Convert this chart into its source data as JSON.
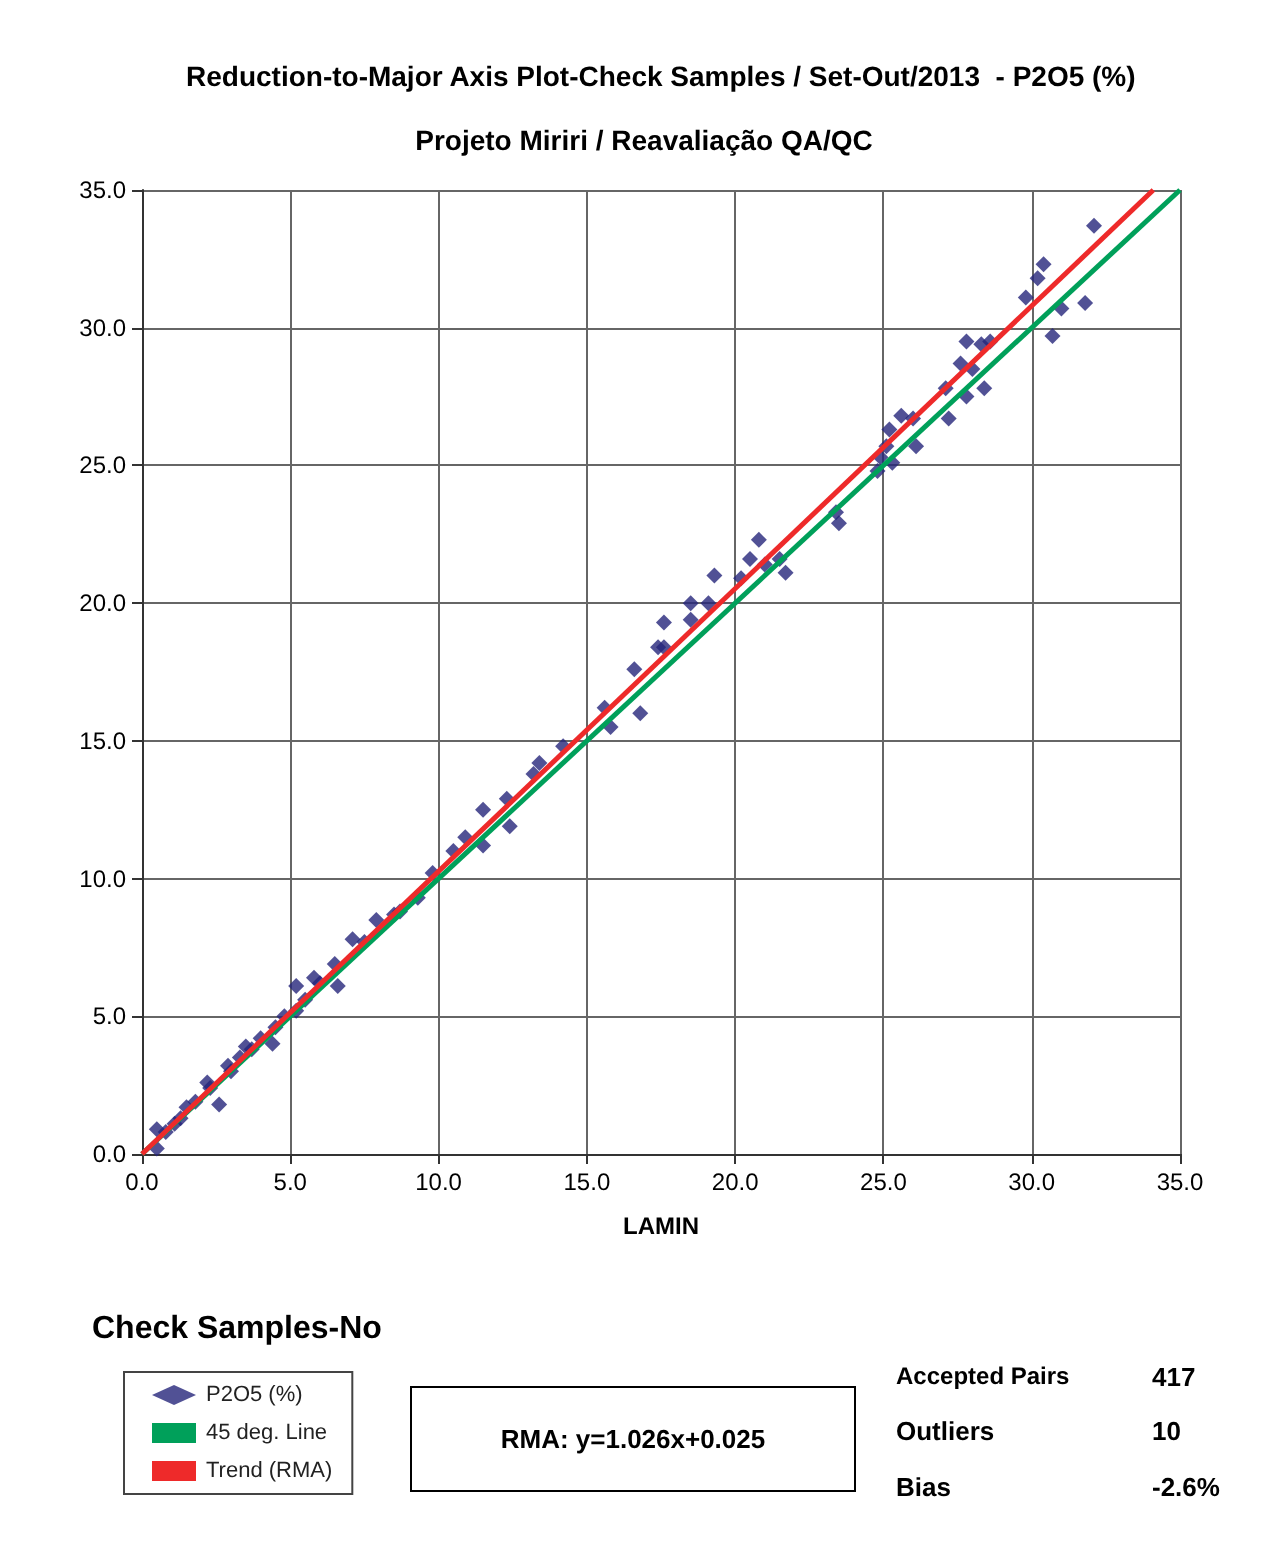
{
  "chart_data": {
    "type": "scatter",
    "title": "Reduction-to-Major Axis Plot-Check Samples / Set-Out/2013  - P2O5 (%)",
    "subtitle": "Projeto Miriri / Reavaliação QA/QC",
    "xlabel": "LAMIN",
    "xlim": [
      0,
      35
    ],
    "ylim": [
      0,
      35
    ],
    "xticks": [
      {
        "value": 0,
        "label": "0.0"
      },
      {
        "value": 5,
        "label": "5.0"
      },
      {
        "value": 10,
        "label": "10.0"
      },
      {
        "value": 15,
        "label": "15.0"
      },
      {
        "value": 20,
        "label": "20.0"
      },
      {
        "value": 25,
        "label": "25.0"
      },
      {
        "value": 30,
        "label": "30.0"
      },
      {
        "value": 35,
        "label": "35.0"
      }
    ],
    "yticks": [
      {
        "value": 0,
        "label": "0.0"
      },
      {
        "value": 5,
        "label": "5.0"
      },
      {
        "value": 10,
        "label": "10.0"
      },
      {
        "value": 15,
        "label": "15.0"
      },
      {
        "value": 20,
        "label": "20.0"
      },
      {
        "value": 25,
        "label": "25.0"
      },
      {
        "value": 30,
        "label": "30.0"
      },
      {
        "value": 35,
        "label": "35.0"
      }
    ],
    "grid": true,
    "legend": "bottom left",
    "series": [
      {
        "name": "P2O5 (%)",
        "marker": "diamond",
        "color": "#26267a",
        "x": [
          32.1,
          30.4,
          30.2,
          29.8,
          31.8,
          31.0,
          30.7,
          27.8,
          28.6,
          28.3,
          27.6,
          28.0,
          27.1,
          28.4,
          27.8,
          27.2,
          25.6,
          26.0,
          25.2,
          25.1,
          24.9,
          26.1,
          25.3,
          24.8,
          23.4,
          23.5,
          20.8,
          20.5,
          21.0,
          21.5,
          21.7,
          20.2,
          19.3,
          19.1,
          18.5,
          18.5,
          17.6,
          17.6,
          17.4,
          16.6,
          15.6,
          16.8,
          15.8,
          14.2,
          13.4,
          13.2,
          12.3,
          11.5,
          12.4,
          10.9,
          10.5,
          11.5,
          9.8,
          9.3,
          8.7,
          7.9,
          7.1,
          6.5,
          6.6,
          5.8,
          5.2,
          5.2,
          4.5,
          4.4,
          3.5,
          2.9,
          2.6,
          2.2,
          1.5,
          1.1,
          0.5,
          0.5,
          0.8,
          1.3,
          1.8,
          2.3,
          3.0,
          3.3,
          3.7,
          4.0,
          4.8,
          5.5,
          6.0,
          7.5,
          8.5
        ],
        "values": [
          33.7,
          32.3,
          31.8,
          31.1,
          30.9,
          30.7,
          29.7,
          29.5,
          29.5,
          29.4,
          28.7,
          28.5,
          27.8,
          27.8,
          27.5,
          26.7,
          26.8,
          26.7,
          26.3,
          25.7,
          25.3,
          25.7,
          25.1,
          24.8,
          23.3,
          22.9,
          22.3,
          21.6,
          21.4,
          21.6,
          21.1,
          20.9,
          21.0,
          20.0,
          20.0,
          19.4,
          19.3,
          18.4,
          18.4,
          17.6,
          16.2,
          16.0,
          15.5,
          14.8,
          14.2,
          13.8,
          12.9,
          12.5,
          11.9,
          11.5,
          11.0,
          11.2,
          10.2,
          9.3,
          8.8,
          8.5,
          7.8,
          6.9,
          6.1,
          6.4,
          6.1,
          5.2,
          4.6,
          4.0,
          3.9,
          3.2,
          1.8,
          2.6,
          1.7,
          1.1,
          0.9,
          0.2,
          0.8,
          1.3,
          1.9,
          2.4,
          3.0,
          3.5,
          3.8,
          4.2,
          5.0,
          5.6,
          6.2,
          7.7,
          8.7
        ]
      },
      {
        "name": "45 deg. Line",
        "type": "line",
        "marker": "none",
        "color": "#00a05a",
        "x": [
          0,
          35
        ],
        "values": [
          0,
          35
        ]
      },
      {
        "name": "Trend (RMA)",
        "type": "line",
        "marker": "none",
        "color": "#ee2a2a",
        "x": [
          0,
          34.1
        ],
        "values": [
          0.0,
          35.0
        ]
      }
    ],
    "annotations": [
      "Check Samples-No",
      "RMA: y=1.026x+0.025",
      "Accepted Pairs",
      "417",
      "Outliers",
      "10",
      "Bias",
      "-2.6%"
    ]
  }
}
